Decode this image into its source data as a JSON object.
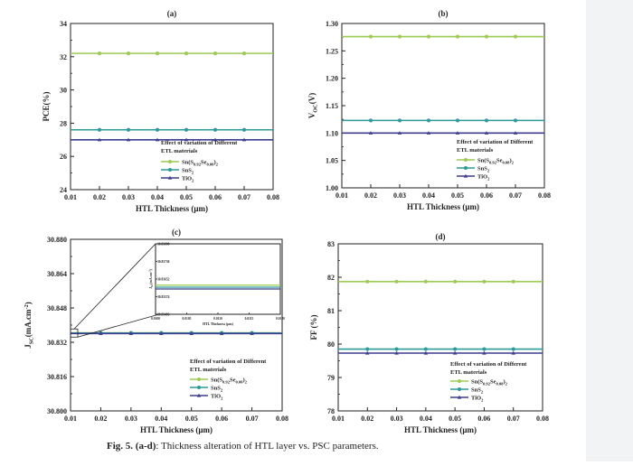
{
  "figure": {
    "caption_label": "Fig. 5.",
    "caption_range": "(a-d)",
    "caption_text": ": Thickness alteration of HTL layer vs. PSC parameters."
  },
  "colors": {
    "sn": "#9ccc54",
    "sns2": "#2a9a9a",
    "tio2": "#3e3d8f"
  },
  "chart_data": [
    {
      "id": "a",
      "panel_label": "(a)",
      "type": "line",
      "ylabel": "PCE(%)",
      "xlabel": "HTL Thickness (μm)",
      "xlim": [
        0.01,
        0.08
      ],
      "ylim": [
        24,
        34
      ],
      "xticks": [
        "0.01",
        "0.02",
        "0.03",
        "0.04",
        "0.05",
        "0.06",
        "0.07",
        "0.08"
      ],
      "yticks": [
        "24",
        "26",
        "28",
        "30",
        "32",
        "34"
      ],
      "x": [
        0.02,
        0.03,
        0.04,
        0.05,
        0.06,
        0.07
      ],
      "legend_title": [
        "Effect of variation of Different",
        "ETL materials"
      ],
      "series": [
        {
          "name": "Sn(S0.92Se0.08)2",
          "color": "sn",
          "values": [
            32.2,
            32.2,
            32.2,
            32.2,
            32.2,
            32.2
          ]
        },
        {
          "name": "SnS2",
          "color": "sns2",
          "values": [
            27.6,
            27.6,
            27.6,
            27.6,
            27.6,
            27.6
          ]
        },
        {
          "name": "TiO2",
          "color": "tio2",
          "values": [
            27.0,
            27.0,
            27.0,
            27.0,
            27.0,
            27.0
          ]
        }
      ]
    },
    {
      "id": "b",
      "panel_label": "(b)",
      "type": "line",
      "ylabel": "VOC(V)",
      "xlabel": "HTL Thickness (μm)",
      "xlim": [
        0.01,
        0.08
      ],
      "ylim": [
        1.0,
        1.3
      ],
      "xticks": [
        "0.01",
        "0.02",
        "0.03",
        "0.04",
        "0.05",
        "0.06",
        "0.07",
        "0.08"
      ],
      "yticks": [
        "1.00",
        "1.05",
        "1.10",
        "1.15",
        "1.20",
        "1.25",
        "1.30"
      ],
      "x": [
        0.02,
        0.03,
        0.04,
        0.05,
        0.06,
        0.07
      ],
      "legend_title": [
        "Effect of variation of Different",
        "ETL materials"
      ],
      "series": [
        {
          "name": "Sn(S0.92Se0.08)2",
          "color": "sn",
          "values": [
            1.276,
            1.276,
            1.276,
            1.276,
            1.276,
            1.276
          ]
        },
        {
          "name": "SnS2",
          "color": "sns2",
          "values": [
            1.123,
            1.123,
            1.123,
            1.123,
            1.123,
            1.123
          ]
        },
        {
          "name": "TiO2",
          "color": "tio2",
          "values": [
            1.1,
            1.1,
            1.1,
            1.1,
            1.1,
            1.1
          ]
        }
      ]
    },
    {
      "id": "c",
      "panel_label": "(c)",
      "type": "line",
      "ylabel": "JSC(mA.cm-2)",
      "xlabel": "HTL Thickness (μm)",
      "xlim": [
        0.01,
        0.08
      ],
      "ylim": [
        30.8,
        30.88
      ],
      "xticks": [
        "0.01",
        "0.02",
        "0.03",
        "0.04",
        "0.05",
        "0.06",
        "0.07",
        "0.08"
      ],
      "yticks": [
        "30.800",
        "30.816",
        "30.832",
        "30.848",
        "30.864",
        "30.880"
      ],
      "x": [
        0.02,
        0.03,
        0.04,
        0.05,
        0.06,
        0.07
      ],
      "legend_title": [
        "Effect of variation of Different",
        "ETL materials"
      ],
      "series": [
        {
          "name": "Sn(S0.92Se0.08)2",
          "color": "sn",
          "values": [
            30.8364,
            30.8364,
            30.8364,
            30.8364,
            30.8364,
            30.8364
          ]
        },
        {
          "name": "SnS2",
          "color": "sns2",
          "values": [
            30.8363,
            30.8363,
            30.8363,
            30.8363,
            30.8363,
            30.8363
          ]
        },
        {
          "name": "TiO2",
          "color": "tio2",
          "values": [
            30.8361,
            30.8361,
            30.8361,
            30.8361,
            30.8361,
            30.8361
          ]
        }
      ],
      "inset": {
        "xlim": [
          0.01,
          0.012
        ],
        "ylim": [
          30.83496,
          30.83808
        ],
        "xticks": [
          "0.0100",
          "0.0105",
          "0.0110",
          "0.0115",
          "0.0120"
        ],
        "yticks": [
          "30.83496",
          "30.83574",
          "30.83652",
          "30.83730",
          "30.83808"
        ],
        "xlabel": "HTL Thickness (μm)",
        "ylabel": "JSC(mA.cm-2)",
        "series_values": [
          30.83625,
          30.83616,
          30.83608
        ]
      }
    },
    {
      "id": "d",
      "panel_label": "(d)",
      "type": "line",
      "ylabel": "FF (%)",
      "xlabel": "HTL Thickness (μm)",
      "xlim": [
        0.01,
        0.08
      ],
      "ylim": [
        78,
        83
      ],
      "xticks": [
        "0.01",
        "0.02",
        "0.03",
        "0.04",
        "0.05",
        "0.06",
        "0.07",
        "0.08"
      ],
      "yticks": [
        "78",
        "79",
        "80",
        "81",
        "82",
        "83"
      ],
      "x": [
        0.02,
        0.03,
        0.04,
        0.05,
        0.06,
        0.07
      ],
      "legend_title": [
        "Effect of variation of Different",
        "ETL materials"
      ],
      "series": [
        {
          "name": "Sn(S0.92Se0.08)2",
          "color": "sn",
          "values": [
            81.87,
            81.87,
            81.87,
            81.87,
            81.87,
            81.87
          ]
        },
        {
          "name": "SnS2",
          "color": "sns2",
          "values": [
            79.85,
            79.85,
            79.85,
            79.85,
            79.85,
            79.85
          ]
        },
        {
          "name": "TiO2",
          "color": "tio2",
          "values": [
            79.73,
            79.73,
            79.73,
            79.73,
            79.73,
            79.73
          ]
        }
      ]
    }
  ]
}
